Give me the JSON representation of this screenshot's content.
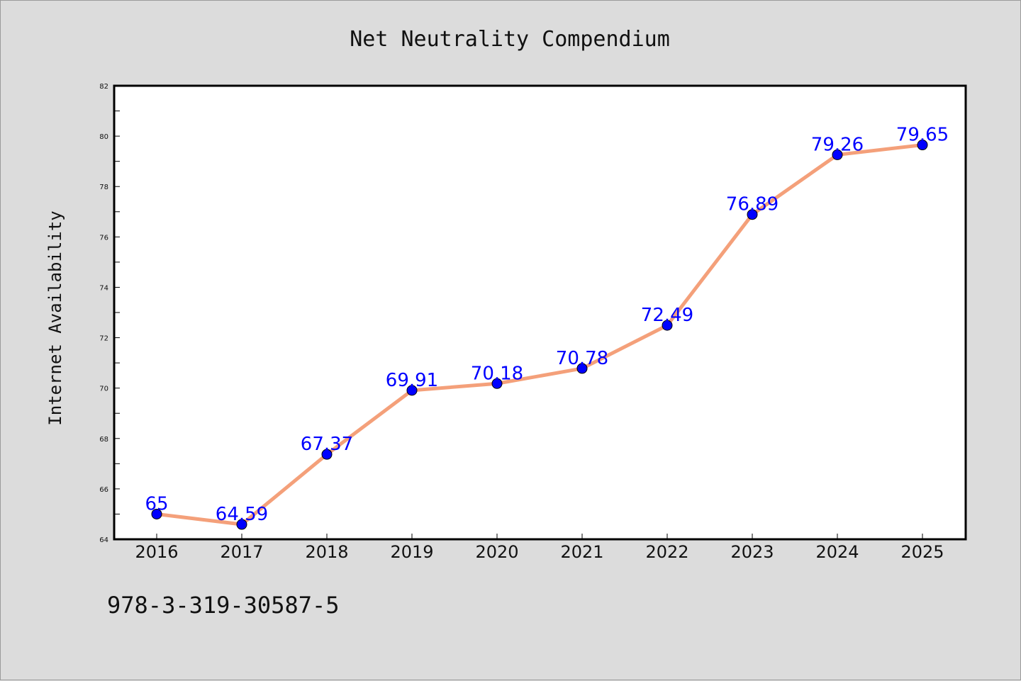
{
  "chart_data": {
    "type": "line",
    "title": "Net Neutrality Compendium",
    "ylabel": "Internet Availability",
    "xlabel": "",
    "categories": [
      "2016",
      "2017",
      "2018",
      "2019",
      "2020",
      "2021",
      "2022",
      "2023",
      "2024",
      "2025"
    ],
    "values": [
      65,
      64.59,
      67.37,
      69.91,
      70.18,
      70.78,
      72.49,
      76.89,
      79.26,
      79.65
    ],
    "data_labels": [
      "65",
      "64.59",
      "67.37",
      "69.91",
      "70.18",
      "70.78",
      "72.49",
      "76.89",
      "79.26",
      "79.65"
    ],
    "ylim": [
      64,
      82
    ],
    "yticks": [
      64,
      66,
      68,
      70,
      72,
      74,
      76,
      78,
      80,
      82
    ],
    "ytick_labels": [
      "64",
      "66",
      "68",
      "70",
      "72",
      "74",
      "76",
      "78",
      "80",
      "82"
    ],
    "grid": false,
    "line_color": "#f4a07a",
    "marker_color": "#0000ff",
    "label_color": "#0000ff"
  },
  "footer": {
    "isbn": "978-3-319-30587-5"
  }
}
